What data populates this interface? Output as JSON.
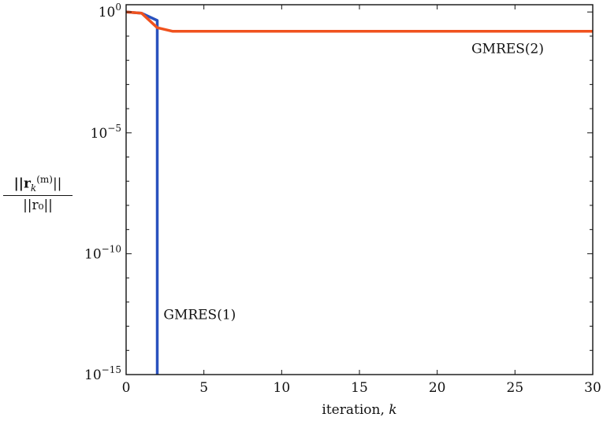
{
  "chart_data": {
    "type": "line",
    "title": "",
    "xlabel": "iteration, k",
    "ylabel": "||r_k^(m)|| / ||r_0||",
    "xlim": [
      0,
      30
    ],
    "ylim_exponent": [
      -15,
      0.3
    ],
    "yscale": "log",
    "grid": false,
    "x_ticks": [
      0,
      5,
      10,
      15,
      20,
      25,
      30
    ],
    "y_ticks": [
      {
        "base": "10",
        "exp": "0",
        "text": "10",
        "exp_value": 0
      },
      {
        "base": "10",
        "exp": "−5",
        "text": "10",
        "exp_value": -5
      },
      {
        "base": "10",
        "exp": "−10",
        "text": "10",
        "exp_value": -10
      },
      {
        "base": "10",
        "exp": "−15",
        "text": "10",
        "exp_value": -15
      }
    ],
    "series": [
      {
        "name": "GMRES(1)",
        "color": "#2a52be",
        "x": [
          0,
          1,
          2,
          2
        ],
        "log10_y": [
          0,
          -0.05,
          -0.35,
          -16
        ]
      },
      {
        "name": "GMRES(2)",
        "color": "#f0521e",
        "x": [
          0,
          1,
          2,
          3,
          4,
          5,
          10,
          15,
          20,
          25,
          30
        ],
        "log10_y": [
          0,
          -0.05,
          -0.65,
          -0.8,
          -0.8,
          -0.8,
          -0.8,
          -0.8,
          -0.8,
          -0.8,
          -0.8
        ]
      }
    ],
    "annotations": [
      {
        "text": "GMRES(2)",
        "x": 22.2,
        "log10_y": -1.7
      },
      {
        "text": "GMRES(1)",
        "x": 2.4,
        "log10_y": -12.7
      }
    ]
  },
  "ylabel_parts": {
    "num_prefix": "||r",
    "num_sub": "k",
    "num_sup": "(m)",
    "num_suffix": "||",
    "den": "||r₀||"
  },
  "xlabel_parts": {
    "text": "iteration, ",
    "var": "k"
  }
}
